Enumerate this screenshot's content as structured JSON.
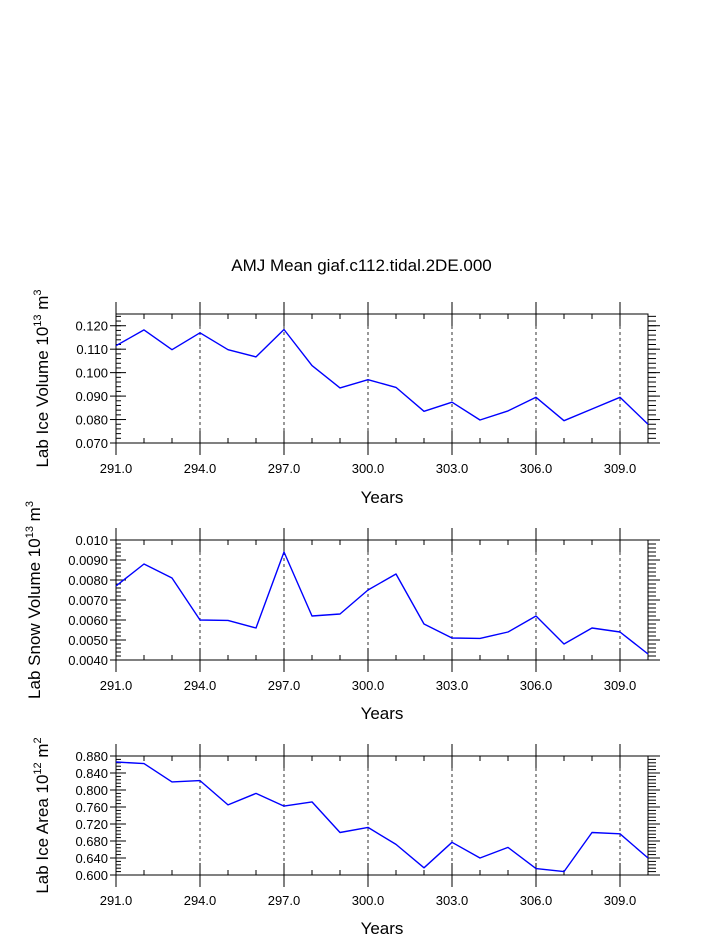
{
  "title": "AMJ Mean giaf.c112.tidal.2DE.000",
  "chart_data": [
    {
      "type": "line",
      "name": "ice-volume",
      "xlabel": "Years",
      "ylabel_parts": [
        "Lab Ice Volume 10",
        "13",
        " m",
        "3"
      ],
      "x": [
        291,
        292,
        293,
        294,
        295,
        296,
        297,
        298,
        299,
        300,
        301,
        302,
        303,
        304,
        305,
        306,
        307,
        308,
        309,
        310
      ],
      "values": [
        0.1115,
        0.1182,
        0.1098,
        0.117,
        0.1098,
        0.1067,
        0.1184,
        0.103,
        0.0935,
        0.097,
        0.0937,
        0.0835,
        0.0874,
        0.0798,
        0.0837,
        0.0895,
        0.0795,
        0.0845,
        0.0895,
        0.078
      ],
      "xlim": [
        291,
        310
      ],
      "ylim": [
        0.07,
        0.125
      ],
      "xticks": [
        "291.0",
        "294.0",
        "297.0",
        "300.0",
        "303.0",
        "306.0",
        "309.0"
      ],
      "xtick_values": [
        291,
        294,
        297,
        300,
        303,
        306,
        309
      ],
      "yticks": [
        "0.070",
        "0.080",
        "0.090",
        "0.100",
        "0.110",
        "0.120"
      ],
      "ytick_values": [
        0.07,
        0.08,
        0.09,
        0.1,
        0.11,
        0.12
      ],
      "y_minor_step": 0.002,
      "line_color": "#0000ff"
    },
    {
      "type": "line",
      "name": "snow-volume",
      "xlabel": "Years",
      "ylabel_parts": [
        "Lab Snow Volume 10",
        "13",
        " m",
        "3"
      ],
      "x": [
        291,
        292,
        293,
        294,
        295,
        296,
        297,
        298,
        299,
        300,
        301,
        302,
        303,
        304,
        305,
        306,
        307,
        308,
        309,
        310
      ],
      "values": [
        0.0077,
        0.0088,
        0.0081,
        0.006,
        0.00598,
        0.0056,
        0.0094,
        0.0062,
        0.0063,
        0.0075,
        0.0083,
        0.0058,
        0.0051,
        0.00508,
        0.0054,
        0.0062,
        0.0048,
        0.0056,
        0.0054,
        0.0043
      ],
      "xlim": [
        291,
        310
      ],
      "ylim": [
        0.004,
        0.01
      ],
      "xticks": [
        "291.0",
        "294.0",
        "297.0",
        "300.0",
        "303.0",
        "306.0",
        "309.0"
      ],
      "xtick_values": [
        291,
        294,
        297,
        300,
        303,
        306,
        309
      ],
      "yticks": [
        "0.0040",
        "0.0050",
        "0.0060",
        "0.0070",
        "0.0080",
        "0.0090",
        "0.010"
      ],
      "ytick_values": [
        0.004,
        0.005,
        0.006,
        0.007,
        0.008,
        0.009,
        0.01
      ],
      "y_minor_step": 0.0002,
      "line_color": "#0000ff"
    },
    {
      "type": "line",
      "name": "ice-area",
      "xlabel": "Years",
      "ylabel_parts": [
        "Lab Ice Area 10",
        "12",
        " m",
        "2"
      ],
      "x": [
        291,
        292,
        293,
        294,
        295,
        296,
        297,
        298,
        299,
        300,
        301,
        302,
        303,
        304,
        305,
        306,
        307,
        308,
        309,
        310
      ],
      "values": [
        0.866,
        0.862,
        0.819,
        0.822,
        0.765,
        0.792,
        0.762,
        0.772,
        0.7,
        0.712,
        0.672,
        0.617,
        0.677,
        0.64,
        0.665,
        0.615,
        0.608,
        0.7,
        0.697,
        0.64
      ],
      "xlim": [
        291,
        310
      ],
      "ylim": [
        0.6,
        0.88
      ],
      "xticks": [
        "291.0",
        "294.0",
        "297.0",
        "300.0",
        "303.0",
        "306.0",
        "309.0"
      ],
      "xtick_values": [
        291,
        294,
        297,
        300,
        303,
        306,
        309
      ],
      "yticks": [
        "0.600",
        "0.640",
        "0.680",
        "0.720",
        "0.760",
        "0.800",
        "0.840",
        "0.880"
      ],
      "ytick_values": [
        0.6,
        0.64,
        0.68,
        0.72,
        0.76,
        0.8,
        0.84,
        0.88
      ],
      "y_minor_step": 0.008,
      "line_color": "#0000ff"
    }
  ]
}
